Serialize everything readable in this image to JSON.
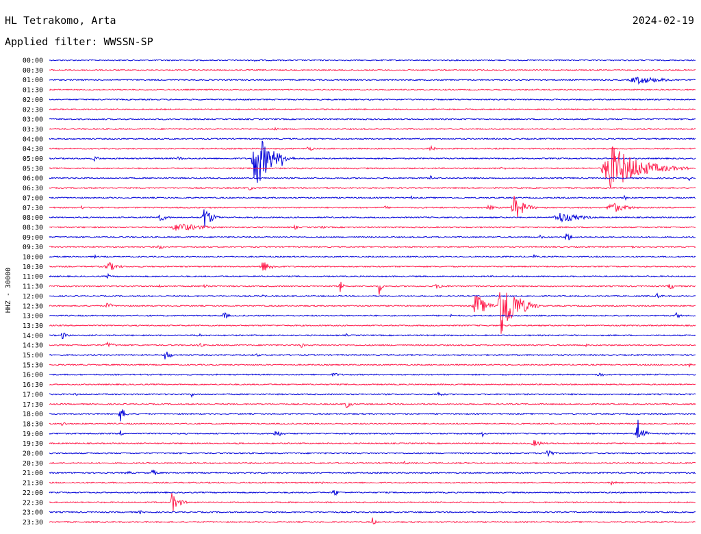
{
  "header": {
    "station": "HL Tetrakomo, Arta",
    "date": "2024-02-19",
    "filter": "Applied filter: WWSSN-SP"
  },
  "chart_data": {
    "type": "line",
    "title": "HL Tetrakomo, Arta",
    "subtitle": "Applied filter: WWSSN-SP",
    "ylabel": "HHZ - 30000",
    "xlabel": "",
    "colors": [
      "#0000d8",
      "#ff1a4a"
    ],
    "row_labels": [
      "00:00",
      "00:30",
      "01:00",
      "01:30",
      "02:00",
      "02:30",
      "03:00",
      "03:30",
      "04:00",
      "04:30",
      "05:00",
      "05:30",
      "06:00",
      "06:30",
      "07:00",
      "07:30",
      "08:00",
      "08:30",
      "09:00",
      "09:30",
      "10:00",
      "10:30",
      "11:00",
      "11:30",
      "12:00",
      "12:30",
      "13:00",
      "13:30",
      "14:00",
      "14:30",
      "15:00",
      "15:30",
      "16:00",
      "16:30",
      "17:00",
      "17:30",
      "18:00",
      "18:30",
      "19:00",
      "19:30",
      "20:00",
      "20:30",
      "21:00",
      "21:30",
      "22:00",
      "22:30",
      "23:00",
      "23:30"
    ],
    "events": [
      {
        "row": 0,
        "pos": 0.32,
        "amp": 3,
        "dur": 0.03
      },
      {
        "row": 2,
        "pos": 0.91,
        "amp": 6,
        "dur": 0.12
      },
      {
        "row": 7,
        "pos": 0.35,
        "amp": 3,
        "dur": 0.02
      },
      {
        "row": 9,
        "pos": 0.4,
        "amp": 4,
        "dur": 0.03
      },
      {
        "row": 9,
        "pos": 0.59,
        "amp": 5,
        "dur": 0.02
      },
      {
        "row": 10,
        "pos": 0.07,
        "amp": 5,
        "dur": 0.02
      },
      {
        "row": 10,
        "pos": 0.2,
        "amp": 4,
        "dur": 0.02
      },
      {
        "row": 10,
        "pos": 0.32,
        "amp": 45,
        "dur": 0.06
      },
      {
        "row": 10,
        "pos": 0.36,
        "amp": 12,
        "dur": 0.02
      },
      {
        "row": 11,
        "pos": 0.87,
        "amp": 35,
        "dur": 0.12
      },
      {
        "row": 11,
        "pos": 0.7,
        "amp": 3,
        "dur": 0.02
      },
      {
        "row": 12,
        "pos": 0.59,
        "amp": 4,
        "dur": 0.01
      },
      {
        "row": 12,
        "pos": 0.99,
        "amp": 4,
        "dur": 0.01
      },
      {
        "row": 13,
        "pos": 0.31,
        "amp": 4,
        "dur": 0.02
      },
      {
        "row": 14,
        "pos": 0.56,
        "amp": 3,
        "dur": 0.01
      },
      {
        "row": 14,
        "pos": 0.89,
        "amp": 5,
        "dur": 0.01
      },
      {
        "row": 15,
        "pos": 0.05,
        "amp": 4,
        "dur": 0.01
      },
      {
        "row": 15,
        "pos": 0.52,
        "amp": 3,
        "dur": 0.02
      },
      {
        "row": 15,
        "pos": 0.68,
        "amp": 4,
        "dur": 0.03
      },
      {
        "row": 15,
        "pos": 0.72,
        "amp": 20,
        "dur": 0.04
      },
      {
        "row": 15,
        "pos": 0.87,
        "amp": 9,
        "dur": 0.06
      },
      {
        "row": 16,
        "pos": 0.17,
        "amp": 7,
        "dur": 0.03
      },
      {
        "row": 16,
        "pos": 0.24,
        "amp": 18,
        "dur": 0.03
      },
      {
        "row": 16,
        "pos": 0.79,
        "amp": 8,
        "dur": 0.09
      },
      {
        "row": 17,
        "pos": 0.2,
        "amp": 7,
        "dur": 0.1
      },
      {
        "row": 17,
        "pos": 0.38,
        "amp": 5,
        "dur": 0.01
      },
      {
        "row": 17,
        "pos": 0.42,
        "amp": 3,
        "dur": 0.02
      },
      {
        "row": 18,
        "pos": 0.76,
        "amp": 4,
        "dur": 0.01
      },
      {
        "row": 18,
        "pos": 0.8,
        "amp": 9,
        "dur": 0.02
      },
      {
        "row": 19,
        "pos": 0.17,
        "amp": 4,
        "dur": 0.02
      },
      {
        "row": 19,
        "pos": 0.9,
        "amp": 5,
        "dur": 0.01
      },
      {
        "row": 20,
        "pos": 0.07,
        "amp": 3,
        "dur": 0.01
      },
      {
        "row": 20,
        "pos": 0.75,
        "amp": 4,
        "dur": 0.01
      },
      {
        "row": 21,
        "pos": 0.09,
        "amp": 8,
        "dur": 0.04
      },
      {
        "row": 21,
        "pos": 0.33,
        "amp": 9,
        "dur": 0.04
      },
      {
        "row": 22,
        "pos": 0.09,
        "amp": 5,
        "dur": 0.01
      },
      {
        "row": 23,
        "pos": 0.17,
        "amp": 3,
        "dur": 0.01
      },
      {
        "row": 23,
        "pos": 0.24,
        "amp": 5,
        "dur": 0.02
      },
      {
        "row": 23,
        "pos": 0.45,
        "amp": 12,
        "dur": 0.01
      },
      {
        "row": 23,
        "pos": 0.51,
        "amp": 15,
        "dur": 0.01
      },
      {
        "row": 23,
        "pos": 0.6,
        "amp": 4,
        "dur": 0.04
      },
      {
        "row": 23,
        "pos": 0.8,
        "amp": 4,
        "dur": 0.01
      },
      {
        "row": 23,
        "pos": 0.96,
        "amp": 5,
        "dur": 0.03
      },
      {
        "row": 24,
        "pos": 0.33,
        "amp": 3,
        "dur": 0.02
      },
      {
        "row": 24,
        "pos": 0.94,
        "amp": 5,
        "dur": 0.02
      },
      {
        "row": 25,
        "pos": 0.09,
        "amp": 6,
        "dur": 0.02
      },
      {
        "row": 25,
        "pos": 0.66,
        "amp": 20,
        "dur": 0.04
      },
      {
        "row": 25,
        "pos": 0.7,
        "amp": 50,
        "dur": 0.06
      },
      {
        "row": 26,
        "pos": 0.27,
        "amp": 6,
        "dur": 0.02
      },
      {
        "row": 26,
        "pos": 0.62,
        "amp": 4,
        "dur": 0.01
      },
      {
        "row": 26,
        "pos": 0.97,
        "amp": 5,
        "dur": 0.02
      },
      {
        "row": 28,
        "pos": 0.02,
        "amp": 6,
        "dur": 0.02
      },
      {
        "row": 28,
        "pos": 0.23,
        "amp": 4,
        "dur": 0.02
      },
      {
        "row": 28,
        "pos": 0.46,
        "amp": 3,
        "dur": 0.01
      },
      {
        "row": 29,
        "pos": 0.09,
        "amp": 5,
        "dur": 0.03
      },
      {
        "row": 29,
        "pos": 0.23,
        "amp": 5,
        "dur": 0.02
      },
      {
        "row": 29,
        "pos": 0.39,
        "amp": 6,
        "dur": 0.01
      },
      {
        "row": 29,
        "pos": 0.83,
        "amp": 4,
        "dur": 0.01
      },
      {
        "row": 30,
        "pos": 0.18,
        "amp": 10,
        "dur": 0.02
      },
      {
        "row": 30,
        "pos": 0.32,
        "amp": 3,
        "dur": 0.02
      },
      {
        "row": 31,
        "pos": 0.99,
        "amp": 4,
        "dur": 0.01
      },
      {
        "row": 32,
        "pos": 0.44,
        "amp": 3,
        "dur": 0.04
      },
      {
        "row": 32,
        "pos": 0.85,
        "amp": 5,
        "dur": 0.02
      },
      {
        "row": 33,
        "pos": 0.86,
        "amp": 3,
        "dur": 0.01
      },
      {
        "row": 34,
        "pos": 0.04,
        "amp": 4,
        "dur": 0.01
      },
      {
        "row": 34,
        "pos": 0.22,
        "amp": 5,
        "dur": 0.01
      },
      {
        "row": 34,
        "pos": 0.6,
        "amp": 6,
        "dur": 0.02
      },
      {
        "row": 35,
        "pos": 0.46,
        "amp": 7,
        "dur": 0.02
      },
      {
        "row": 36,
        "pos": 0.11,
        "amp": 12,
        "dur": 0.02
      },
      {
        "row": 37,
        "pos": 0.02,
        "amp": 4,
        "dur": 0.02
      },
      {
        "row": 38,
        "pos": 0.11,
        "amp": 5,
        "dur": 0.01
      },
      {
        "row": 38,
        "pos": 0.35,
        "amp": 6,
        "dur": 0.03
      },
      {
        "row": 38,
        "pos": 0.67,
        "amp": 5,
        "dur": 0.01
      },
      {
        "row": 38,
        "pos": 0.91,
        "amp": 28,
        "dur": 0.02
      },
      {
        "row": 39,
        "pos": 0.29,
        "amp": 4,
        "dur": 0.01
      },
      {
        "row": 39,
        "pos": 0.75,
        "amp": 5,
        "dur": 0.04
      },
      {
        "row": 40,
        "pos": 0.77,
        "amp": 10,
        "dur": 0.02
      },
      {
        "row": 41,
        "pos": 0.55,
        "amp": 3,
        "dur": 0.02
      },
      {
        "row": 42,
        "pos": 0.12,
        "amp": 3,
        "dur": 0.03
      },
      {
        "row": 42,
        "pos": 0.16,
        "amp": 6,
        "dur": 0.02
      },
      {
        "row": 43,
        "pos": 0.42,
        "amp": 4,
        "dur": 0.01
      },
      {
        "row": 43,
        "pos": 0.87,
        "amp": 4,
        "dur": 0.02
      },
      {
        "row": 44,
        "pos": 0.44,
        "amp": 7,
        "dur": 0.02
      },
      {
        "row": 45,
        "pos": 0.19,
        "amp": 15,
        "dur": 0.03
      },
      {
        "row": 46,
        "pos": 0.14,
        "amp": 3,
        "dur": 0.02
      },
      {
        "row": 47,
        "pos": 0.5,
        "amp": 9,
        "dur": 0.01
      }
    ]
  }
}
